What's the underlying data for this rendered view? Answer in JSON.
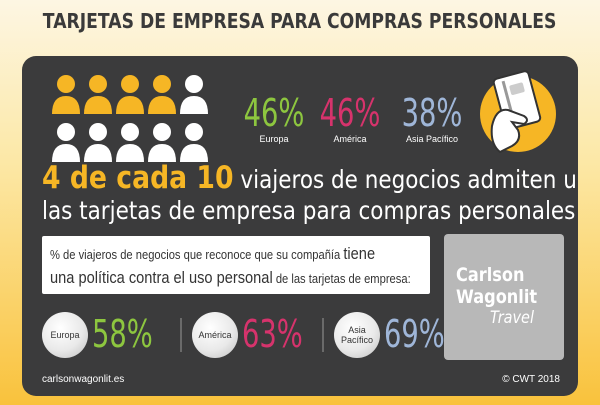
{
  "title": "TARJETAS DE EMPRESA PARA COMPRAS PERSONALES",
  "colors": {
    "europe": "#8dc63f",
    "america": "#d6336c",
    "asia": "#9fb6d8",
    "highlight": "#f6b625",
    "panel": "#3b3b3c"
  },
  "top_stats": [
    {
      "value": "46%",
      "label": "Europa"
    },
    {
      "value": "46%",
      "label": "América"
    },
    {
      "value": "38%",
      "label": "Asia Pacífico"
    }
  ],
  "icons": {
    "people": "people-icon",
    "card_hand": "hand-holding-card-icon",
    "logo": "carlson-wagonlit-logo"
  },
  "headline": {
    "highlight": "4 de cada 10",
    "rest_line1": "viajeros de negocios admiten usar",
    "line2": "las tarjetas de empresa para compras personales"
  },
  "policy": {
    "part1": "% de viajeros de negocios que reconoce que su compañía",
    "part2": "tiene",
    "part3": "una política contra el uso personal",
    "part4": "de las tarjetas de empresa:"
  },
  "logo": {
    "line1": "Carlson",
    "line2": "Wagonlit",
    "line3": "Travel"
  },
  "bottom_stats": [
    {
      "label": "Europa",
      "value": "58%"
    },
    {
      "label": "América",
      "value": "63%"
    },
    {
      "label": "Asia Pacífico",
      "value": "69%"
    }
  ],
  "footer": {
    "left": "carlsonwagonlit.es",
    "right": "© CWT 2018"
  }
}
